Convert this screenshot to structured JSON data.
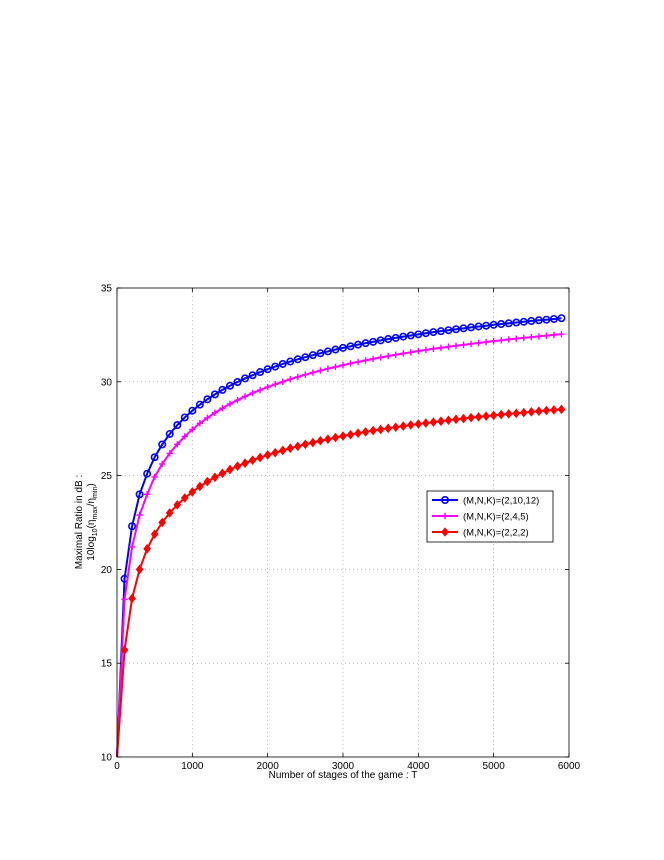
{
  "chart_data": {
    "type": "line",
    "xlabel": "Number of stages of the game : T",
    "ylabel_line1": "Maximal Ratio in dB :",
    "ylabel_line2": {
      "prefix": "10log",
      "sub1": "10",
      "open": "(η",
      "sub2": "max",
      "slash": "/η",
      "sub3": "min",
      "close": ")"
    },
    "xlim": [
      0,
      6000
    ],
    "ylim": [
      10,
      35
    ],
    "xticks": [
      0,
      1000,
      2000,
      3000,
      4000,
      5000,
      6000
    ],
    "yticks": [
      10,
      15,
      20,
      25,
      30,
      35
    ],
    "grid": true,
    "legend_position": "center-right",
    "x": [
      100,
      200,
      300,
      400,
      500,
      600,
      700,
      800,
      900,
      1000,
      1100,
      1200,
      1300,
      1400,
      1500,
      1600,
      1700,
      1800,
      1900,
      2000,
      2100,
      2200,
      2300,
      2400,
      2500,
      2600,
      2700,
      2800,
      2900,
      3000,
      3100,
      3200,
      3300,
      3400,
      3500,
      3600,
      3700,
      3800,
      3900,
      4000,
      4100,
      4200,
      4300,
      4400,
      4500,
      4600,
      4700,
      4800,
      4900,
      5000,
      5100,
      5200,
      5300,
      5400,
      5500,
      5600,
      5700,
      5800,
      5900
    ],
    "series": [
      {
        "name": "(M,N,K)=(2,10,12)",
        "color": "#0000ff",
        "marker": "circle",
        "start": [
          0,
          10
        ],
        "values": [
          19.5,
          22.3,
          24.0,
          25.1,
          25.98,
          26.66,
          27.22,
          27.69,
          28.1,
          28.46,
          28.78,
          29.07,
          29.33,
          29.57,
          29.79,
          29.99,
          30.18,
          30.35,
          30.52,
          30.67,
          30.81,
          30.95,
          31.08,
          31.2,
          31.31,
          31.42,
          31.52,
          31.62,
          31.72,
          31.81,
          31.89,
          31.98,
          32.06,
          32.13,
          32.21,
          32.28,
          32.34,
          32.41,
          32.47,
          32.53,
          32.59,
          32.65,
          32.7,
          32.75,
          32.8,
          32.85,
          32.9,
          32.95,
          32.99,
          33.04,
          33.08,
          33.12,
          33.16,
          33.2,
          33.24,
          33.28,
          33.31,
          33.35,
          33.39
        ]
      },
      {
        "name": "(M,N,K)=(2,4,5)",
        "color": "#ff00ff",
        "marker": "plus",
        "start": [
          0,
          10
        ],
        "values": [
          18.4,
          21.2,
          22.9,
          24.0,
          24.93,
          25.62,
          26.19,
          26.67,
          27.09,
          27.46,
          27.79,
          28.08,
          28.35,
          28.59,
          28.82,
          29.02,
          29.22,
          29.4,
          29.56,
          29.72,
          29.87,
          30.0,
          30.14,
          30.26,
          30.38,
          30.49,
          30.6,
          30.7,
          30.79,
          30.89,
          30.98,
          31.06,
          31.14,
          31.22,
          31.3,
          31.37,
          31.44,
          31.51,
          31.57,
          31.64,
          31.7,
          31.76,
          31.81,
          31.87,
          31.92,
          31.97,
          32.02,
          32.07,
          32.12,
          32.17,
          32.21,
          32.26,
          32.3,
          32.34,
          32.38,
          32.42,
          32.46,
          32.5,
          32.54
        ]
      },
      {
        "name": "(M,N,K)=(2,2,2)",
        "color": "#ff0000",
        "marker": "diamond",
        "start": [
          0,
          10
        ],
        "values": [
          15.7,
          18.45,
          20.0,
          21.1,
          21.88,
          22.5,
          23.01,
          23.44,
          23.81,
          24.13,
          24.42,
          24.68,
          24.91,
          25.12,
          25.32,
          25.5,
          25.66,
          25.82,
          25.96,
          26.1,
          26.22,
          26.34,
          26.46,
          26.56,
          26.67,
          26.76,
          26.86,
          26.94,
          27.03,
          27.11,
          27.18,
          27.26,
          27.33,
          27.4,
          27.46,
          27.52,
          27.58,
          27.64,
          27.7,
          27.75,
          27.8,
          27.85,
          27.9,
          27.95,
          28.0,
          28.04,
          28.09,
          28.13,
          28.17,
          28.21,
          28.25,
          28.29,
          28.32,
          28.36,
          28.4,
          28.43,
          28.47,
          28.5,
          28.53
        ]
      }
    ]
  }
}
